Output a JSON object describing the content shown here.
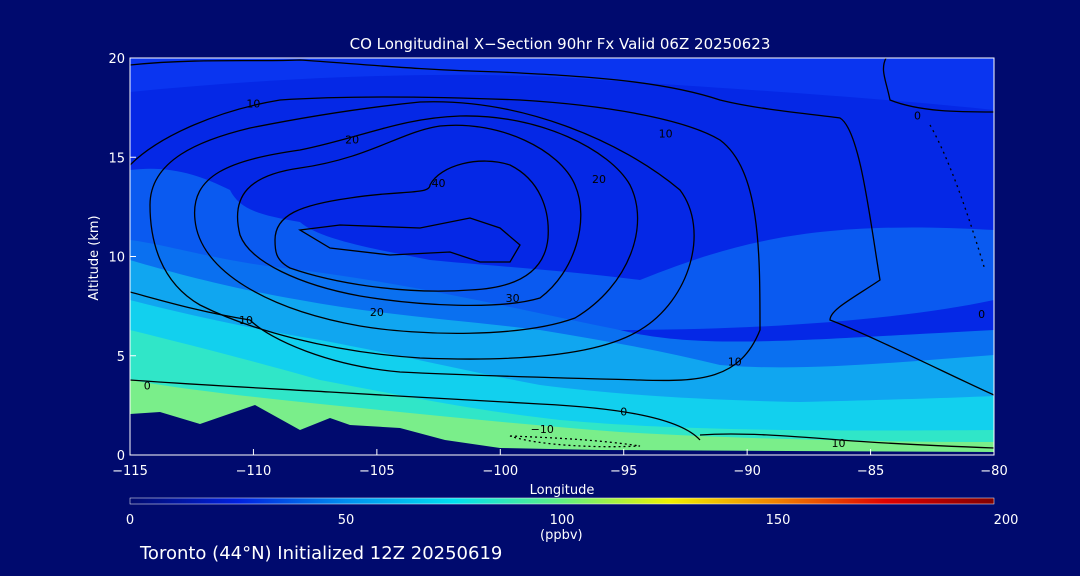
{
  "chart_data": {
    "type": "heatmap",
    "title": "CO Longitudinal X−Section 90hr  Fx Valid 06Z 20250623",
    "xlabel": "Longitude",
    "ylabel": "Altitude (km)",
    "xlim": [
      -115,
      -80
    ],
    "ylim": [
      0,
      20
    ],
    "x_ticks": [
      "−115",
      "−110",
      "−105",
      "−100",
      "−95",
      "−90",
      "−85",
      "−80"
    ],
    "y_ticks": [
      "0",
      "5",
      "10",
      "15",
      "20"
    ],
    "colorbar": {
      "label": "(ppbv)",
      "range": [
        0,
        200
      ],
      "ticks": [
        "0",
        "50",
        "100",
        "150",
        "200"
      ],
      "colormap": [
        "#000A6E",
        "#0020E0",
        "#0090F0",
        "#00E0F0",
        "#60F080",
        "#F0F000",
        "#F08000",
        "#E00000",
        "#800000"
      ]
    },
    "contour_labels": [
      {
        "text": "10",
        "x": -110,
        "y": 17.7
      },
      {
        "text": "20",
        "x": -106,
        "y": 15.9
      },
      {
        "text": "40",
        "x": -102.5,
        "y": 13.7
      },
      {
        "text": "20",
        "x": -96,
        "y": 13.9
      },
      {
        "text": "10",
        "x": -93.3,
        "y": 16.2
      },
      {
        "text": "30",
        "x": -99.5,
        "y": 7.9
      },
      {
        "text": "20",
        "x": -105,
        "y": 7.2
      },
      {
        "text": "10",
        "x": -110.3,
        "y": 6.8
      },
      {
        "text": "0",
        "x": -114.3,
        "y": 3.5
      },
      {
        "text": "0",
        "x": -95,
        "y": 2.2
      },
      {
        "text": "−10",
        "x": -98.3,
        "y": 1.3
      },
      {
        "text": "10",
        "x": -90.5,
        "y": 4.7
      },
      {
        "text": "10",
        "x": -86.3,
        "y": 0.6
      },
      {
        "text": "0",
        "x": -83.1,
        "y": 17.1
      },
      {
        "text": "0",
        "x": -80.5,
        "y": 7.1
      }
    ],
    "footer": "Toronto (44°N) Initialized 12Z 20250619"
  }
}
